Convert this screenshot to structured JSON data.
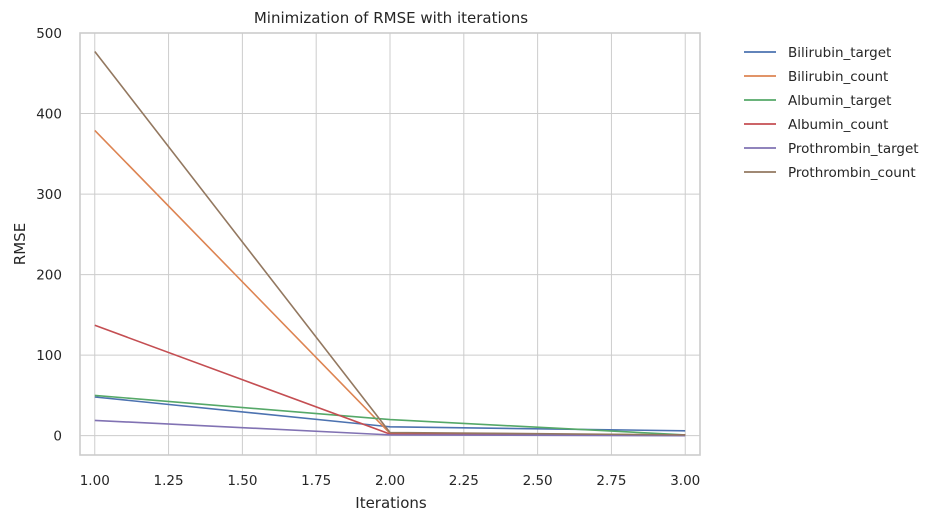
{
  "chart_data": {
    "type": "line",
    "title": "Minimization of RMSE with iterations",
    "xlabel": "Iterations",
    "ylabel": "RMSE",
    "xlim": [
      0.95,
      3.05
    ],
    "ylim": [
      -24,
      500
    ],
    "xticks": [
      1.0,
      1.25,
      1.5,
      1.75,
      2.0,
      2.25,
      2.5,
      2.75,
      3.0
    ],
    "xtick_labels": [
      "1.00",
      "1.25",
      "1.50",
      "1.75",
      "2.00",
      "2.25",
      "2.50",
      "2.75",
      "3.00"
    ],
    "yticks": [
      0,
      100,
      200,
      300,
      400,
      500
    ],
    "ytick_labels": [
      "0",
      "100",
      "200",
      "300",
      "400",
      "500"
    ],
    "grid": true,
    "legend_position": "outside-right",
    "x": [
      1,
      2,
      3
    ],
    "series": [
      {
        "name": "Bilirubin_target",
        "color": "#4c72b0",
        "values": [
          48,
          11,
          6
        ]
      },
      {
        "name": "Bilirubin_count",
        "color": "#dd8452",
        "values": [
          379,
          3,
          1
        ]
      },
      {
        "name": "Albumin_target",
        "color": "#55a868",
        "values": [
          50,
          20,
          1
        ]
      },
      {
        "name": "Albumin_count",
        "color": "#c44e52",
        "values": [
          137,
          2,
          1
        ]
      },
      {
        "name": "Prothrombin_target",
        "color": "#8172b3",
        "values": [
          19,
          1,
          0
        ]
      },
      {
        "name": "Prothrombin_count",
        "color": "#937860",
        "values": [
          477,
          4,
          1
        ]
      }
    ]
  }
}
